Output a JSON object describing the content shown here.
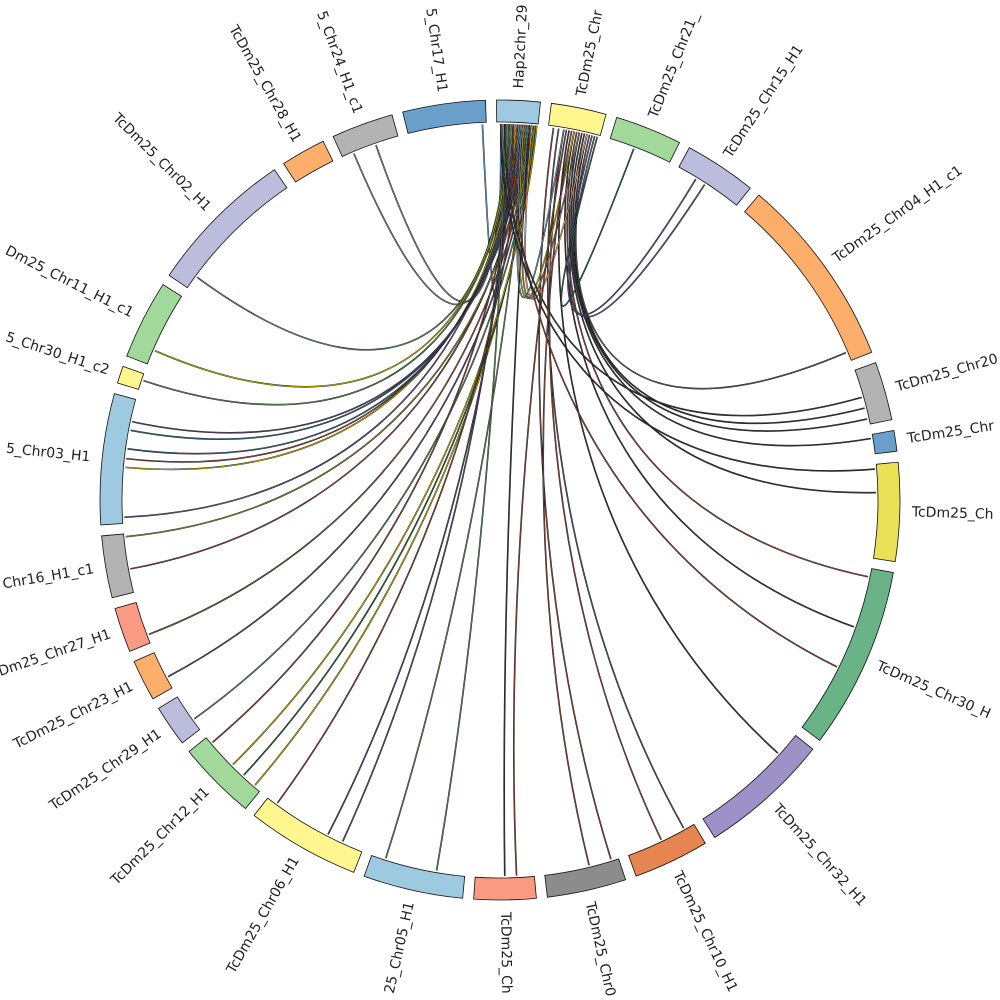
{
  "diagram": {
    "type": "circos",
    "segments": [
      {
        "label": "Hap2chr_29",
        "length": 6.3,
        "color": "#9ecae1"
      },
      {
        "label": "TcDm25_Chr",
        "length": 8,
        "color": "#fff68f"
      },
      {
        "label": "TcDm25_Chr21_",
        "length": 9.7,
        "color": "#a1d99b"
      },
      {
        "label": "TcDm25_Chr15_H1",
        "length": 10.5,
        "color": "#bcbddc"
      },
      {
        "label": "TcDm25_Chr04_H1_c1",
        "length": 28,
        "color": "#fdae6b"
      },
      {
        "label": "TcDm25_Chr20",
        "length": 8.5,
        "color": "#b3b3b3"
      },
      {
        "label": "TcDm25_Chr",
        "length": 3,
        "color": "#6a9ecb"
      },
      {
        "label": "TcDm25_Ch",
        "length": 14.3,
        "color": "#ebe157"
      },
      {
        "label": "TcDm25_Chr30_H",
        "length": 26.5,
        "color": "#69b386"
      },
      {
        "label": "TcDm25_Chr32_H1",
        "length": 19,
        "color": "#9e91c8"
      },
      {
        "label": "TcDm25_Chr10_H1",
        "length": 11,
        "color": "#e6854f"
      },
      {
        "label": "TcDm25_Chr0",
        "length": 11.5,
        "color": "#8c8c8c"
      },
      {
        "label": "TcDm25_Ch",
        "length": 9,
        "color": "#fb9a83"
      },
      {
        "label": "25_Chr05_H1",
        "length": 14.5,
        "color": "#9ecae1"
      },
      {
        "label": "TcDm25_Chr06_H1",
        "length": 16.5,
        "color": "#fff68f"
      },
      {
        "label": "TcDm25_Chr12_H1",
        "length": 11.5,
        "color": "#a1d99b"
      },
      {
        "label": "TcDm25_Chr29_H1",
        "length": 6,
        "color": "#bcbddc"
      },
      {
        "label": "TcDm25_Chr23_H1",
        "length": 6,
        "color": "#fdae6b"
      },
      {
        "label": "Dm25_Chr27_H1",
        "length": 6.5,
        "color": "#fb9a83"
      },
      {
        "label": "Chr16_H1_c1",
        "length": 9,
        "color": "#b3b3b3"
      },
      {
        "label": "5_Chr03_H1",
        "length": 19,
        "color": "#9ecae1"
      },
      {
        "label": "5_Chr30_H1_c2",
        "length": 2.5,
        "color": "#fff68f"
      },
      {
        "label": "Dm25_Chr11_H1_c1",
        "length": 11.5,
        "color": "#a1d99b"
      },
      {
        "label": "TcDm25_Chr02_H1",
        "length": 21.5,
        "color": "#bcbddc"
      },
      {
        "label": "TcDm25_Chr28_H1",
        "length": 6.5,
        "color": "#fdae6b"
      },
      {
        "label": "5_Chr24_H1_c1",
        "length": 9,
        "color": "#b3b3b3"
      },
      {
        "label": "5_Chr17_H1",
        "length": 12,
        "color": "#6a9ecb"
      }
    ],
    "links": [
      [
        0,
        0.1,
        26,
        0.95,
        "#6a9ecb"
      ],
      [
        0,
        0.15,
        25,
        0.6,
        "#888888"
      ],
      [
        0,
        0.2,
        25,
        0.2,
        "#888888"
      ],
      [
        0,
        0.25,
        23,
        0.1,
        "#5a8a5a"
      ],
      [
        0,
        0.3,
        22,
        0.2,
        "#c8b400"
      ],
      [
        0,
        0.35,
        21,
        0.6,
        "#5a8a5a"
      ],
      [
        0,
        0.4,
        20,
        0.05,
        "#6a5a8a"
      ],
      [
        0,
        0.45,
        20,
        0.45,
        "#c8b400"
      ],
      [
        0,
        0.5,
        20,
        0.52,
        "#8a4a3a"
      ],
      [
        0,
        0.55,
        20,
        0.6,
        "#3a6a8a"
      ],
      [
        0,
        0.6,
        20,
        0.75,
        "#3a6a8a"
      ],
      [
        0,
        0.65,
        20,
        0.82,
        "#5a4a7a"
      ],
      [
        0,
        0.7,
        19,
        0.4,
        "#8a4a3a"
      ],
      [
        0,
        0.75,
        19,
        0.95,
        "#8a8a3a"
      ],
      [
        0,
        0.8,
        18,
        0.2,
        "#8a5a3a"
      ],
      [
        0,
        0.85,
        17,
        0.3,
        "#5a4a7a"
      ],
      [
        0,
        0.9,
        16,
        0.3,
        "#5a8a5a"
      ],
      [
        0,
        0.92,
        15,
        0.1,
        "#c8b400"
      ],
      [
        0,
        0.95,
        15,
        0.3,
        "#2a6a4a"
      ],
      [
        0,
        0.97,
        15,
        0.5,
        "#c8b400"
      ],
      [
        0,
        0.5,
        15,
        0.9,
        "#8a4a3a"
      ],
      [
        0,
        0.3,
        14,
        0.2,
        "#5a5a6a"
      ],
      [
        0,
        0.4,
        14,
        0.35,
        "#5a4a7a"
      ],
      [
        0,
        0.6,
        14,
        0.9,
        "#8a4a3a"
      ],
      [
        0,
        0.2,
        13,
        0.3,
        "#5a8a5a"
      ],
      [
        0,
        0.7,
        13,
        0.85,
        "#5a8a5a"
      ],
      [
        0,
        0.8,
        12,
        0.5,
        "#3a3a3a"
      ],
      [
        1,
        0.1,
        11,
        0.1,
        "#8a4a3a"
      ],
      [
        1,
        0.2,
        10,
        0.15,
        "#5a5a5a"
      ],
      [
        1,
        0.3,
        10,
        0.5,
        "#8a4a3a"
      ],
      [
        1,
        0.4,
        9,
        0.2,
        "#3a3a3a"
      ],
      [
        1,
        0.5,
        8,
        0.35,
        "#3a3a3a"
      ],
      [
        1,
        0.55,
        8,
        0.05,
        "#8a4a3a"
      ],
      [
        1,
        0.6,
        7,
        0.3,
        "#3a3a3a"
      ],
      [
        1,
        0.65,
        6,
        0.2,
        "#3a3a3a"
      ],
      [
        1,
        0.7,
        5,
        0.9,
        "#3a3a3a"
      ],
      [
        1,
        0.75,
        5,
        0.7,
        "#3a3a3a"
      ],
      [
        1,
        0.8,
        4,
        0.95,
        "#5a5a6a"
      ],
      [
        1,
        0.85,
        3,
        0.3,
        "#6a5a8a"
      ],
      [
        1,
        0.9,
        3,
        0.45,
        "#6a5a8a"
      ],
      [
        1,
        0.95,
        2,
        0.4,
        "#2a6a4a"
      ],
      [
        0,
        0.6,
        1,
        0.3,
        "#6a9ecb"
      ],
      [
        0,
        0.65,
        1,
        0.5,
        "#c8b400"
      ],
      [
        0,
        0.75,
        1,
        0.6,
        "#888888"
      ],
      [
        0,
        0.85,
        1,
        0.75,
        "#fdae6b"
      ],
      [
        0,
        0.2,
        5,
        0.5,
        "#3a3a3a"
      ],
      [
        0,
        0.4,
        8,
        0.6,
        "#8a4a3a"
      ],
      [
        0,
        0.1,
        7,
        0.05,
        "#3a3a3a"
      ],
      [
        1,
        0.35,
        12,
        0.3,
        "#8a4a3a"
      ],
      [
        1,
        0.45,
        11,
        0.4,
        "#8a4a3a"
      ]
    ]
  }
}
